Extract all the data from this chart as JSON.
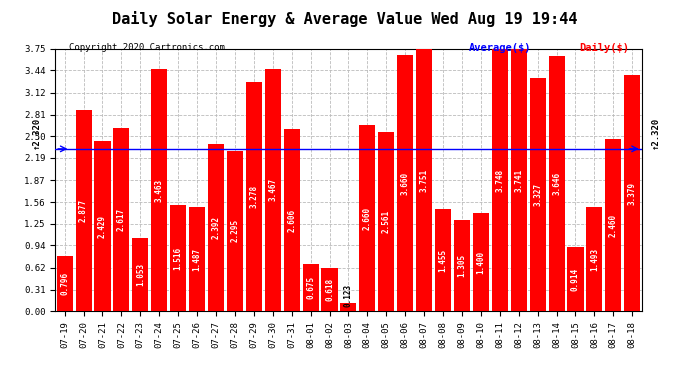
{
  "title": "Daily Solar Energy & Average Value Wed Aug 19 19:44",
  "copyright": "Copyright 2020 Cartronics.com",
  "categories": [
    "07-19",
    "07-20",
    "07-21",
    "07-22",
    "07-23",
    "07-24",
    "07-25",
    "07-26",
    "07-27",
    "07-28",
    "07-29",
    "07-30",
    "07-31",
    "08-01",
    "08-02",
    "08-03",
    "08-04",
    "08-05",
    "08-06",
    "08-07",
    "08-08",
    "08-09",
    "08-10",
    "08-11",
    "08-12",
    "08-13",
    "08-14",
    "08-15",
    "08-16",
    "08-17",
    "08-18"
  ],
  "values": [
    0.796,
    2.877,
    2.429,
    2.617,
    1.053,
    3.463,
    1.516,
    1.487,
    2.392,
    2.295,
    3.278,
    3.467,
    2.606,
    0.675,
    0.618,
    0.123,
    2.66,
    2.561,
    3.66,
    3.751,
    1.455,
    1.305,
    1.4,
    3.748,
    3.741,
    3.327,
    3.646,
    0.914,
    1.493,
    2.46,
    3.379
  ],
  "average": 2.32,
  "bar_color": "#FF0000",
  "average_line_color": "#0000FF",
  "background_color": "#FFFFFF",
  "plot_bg_color": "#FFFFFF",
  "grid_color": "#BBBBBB",
  "ylim": [
    0,
    3.75
  ],
  "yticks": [
    0.0,
    0.31,
    0.62,
    0.94,
    1.25,
    1.56,
    1.87,
    2.19,
    2.5,
    2.81,
    3.12,
    3.44,
    3.75
  ],
  "title_fontsize": 11,
  "copyright_fontsize": 6.5,
  "label_fontsize": 5.5,
  "tick_fontsize": 6.5,
  "legend_fontsize": 7.5,
  "legend_avg_color": "#0000FF",
  "legend_daily_color": "#FF0000",
  "average_label": "Average($)",
  "daily_label": "Daily($)",
  "avg_side_label_fontsize": 6.5
}
